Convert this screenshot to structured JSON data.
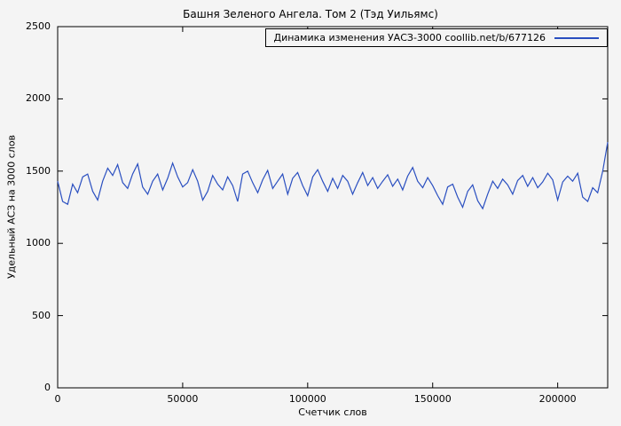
{
  "title": "Башня Зеленого Ангела. Том 2 (Тэд Уильямс)",
  "legend": {
    "label": "Динамика изменения УАСЗ-3000 coollib.net/b/677126"
  },
  "axes": {
    "x_label": "Счетчик слов",
    "y_label": "Удельный АСЗ на 3000 слов"
  },
  "colors": {
    "line": "#2a4fc0",
    "axis": "#000000",
    "background": "#f4f4f4"
  },
  "chart_data": {
    "type": "line",
    "title": "Башня Зеленого Ангела. Том 2 (Тэд Уильямс)",
    "xlabel": "Счетчик слов",
    "ylabel": "Удельный АСЗ на 3000 слов",
    "legend_position": "top-right",
    "grid": false,
    "xlim": [
      0,
      220000
    ],
    "ylim": [
      0,
      2500
    ],
    "x_ticks": [
      0,
      50000,
      100000,
      150000,
      200000
    ],
    "x_tick_labels": [
      "0",
      "50000",
      "100000",
      "150000",
      "200000"
    ],
    "y_ticks": [
      0,
      500,
      1000,
      1500,
      2000,
      2500
    ],
    "y_tick_labels": [
      "0",
      "500",
      "1000",
      "1500",
      "2000",
      "2500"
    ],
    "x_start": 0,
    "x_step": 2000,
    "series": [
      {
        "name": "Динамика изменения УАСЗ-3000 coollib.net/b/677126",
        "values": [
          1430,
          1290,
          1270,
          1410,
          1350,
          1460,
          1480,
          1360,
          1300,
          1430,
          1520,
          1470,
          1545,
          1420,
          1380,
          1480,
          1550,
          1390,
          1340,
          1430,
          1480,
          1370,
          1450,
          1555,
          1460,
          1390,
          1420,
          1510,
          1430,
          1300,
          1360,
          1470,
          1410,
          1370,
          1460,
          1400,
          1290,
          1480,
          1500,
          1420,
          1350,
          1440,
          1505,
          1380,
          1430,
          1480,
          1340,
          1450,
          1490,
          1400,
          1330,
          1460,
          1510,
          1430,
          1360,
          1450,
          1380,
          1470,
          1430,
          1340,
          1420,
          1490,
          1400,
          1455,
          1380,
          1430,
          1475,
          1395,
          1445,
          1370,
          1465,
          1525,
          1430,
          1385,
          1455,
          1400,
          1330,
          1270,
          1390,
          1410,
          1320,
          1250,
          1360,
          1405,
          1295,
          1240,
          1340,
          1430,
          1380,
          1445,
          1405,
          1340,
          1435,
          1470,
          1395,
          1455,
          1385,
          1425,
          1485,
          1440,
          1300,
          1425,
          1465,
          1430,
          1485,
          1320,
          1290,
          1385,
          1350,
          1500,
          1700
        ]
      }
    ]
  }
}
